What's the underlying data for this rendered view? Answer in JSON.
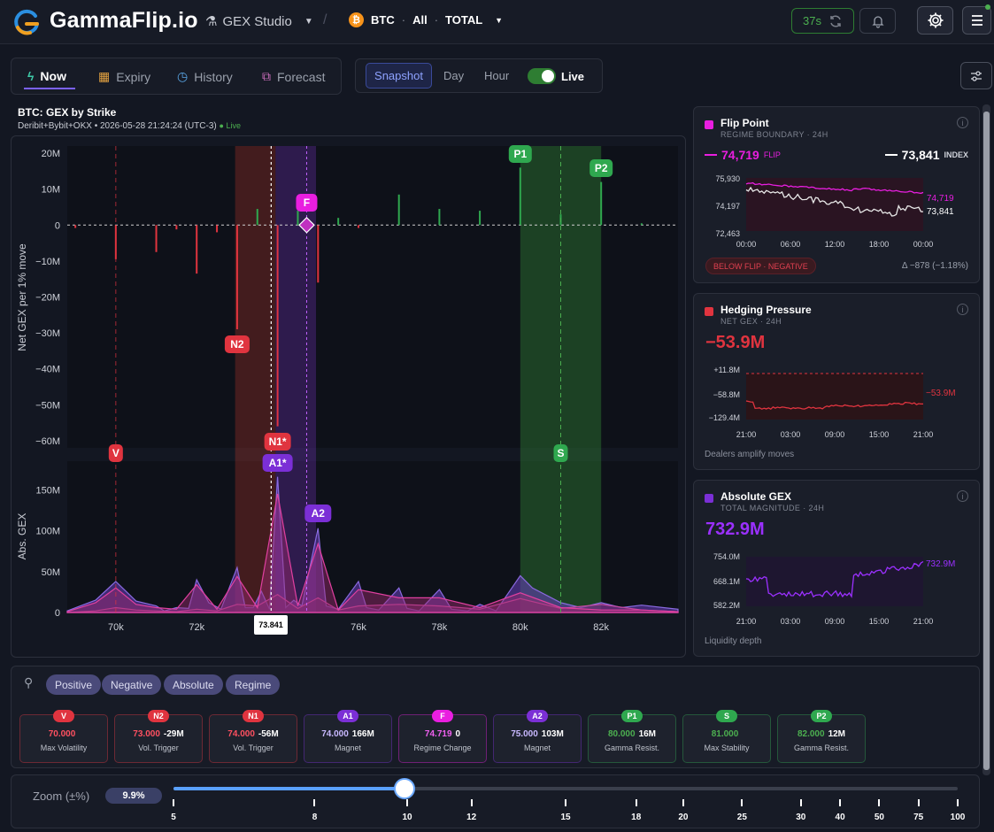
{
  "app": {
    "brand": "GammaFlip.io",
    "studio": "GEX Studio",
    "asset": "BTC",
    "scope": "All",
    "total": "TOTAL",
    "refresh": "37s"
  },
  "tabs": [
    {
      "label": "Now"
    },
    {
      "label": "Expiry"
    },
    {
      "label": "History"
    },
    {
      "label": "Forecast"
    }
  ],
  "modes": {
    "snapshot": "Snapshot",
    "day": "Day",
    "hour": "Hour",
    "live": "Live"
  },
  "chart": {
    "title": "BTC: GEX by Strike",
    "subtitle": "Deribit+Bybit+OKX • 2026-05-28 21:24:24 (UTC-3)",
    "live": "● Live",
    "price_tag": "73.841"
  },
  "chart_data": {
    "type": "bar",
    "x_unit": "strike",
    "xlim": [
      68800,
      83900
    ],
    "x_ticks": [
      "70k",
      "72k",
      "74k",
      "76k",
      "78k",
      "80k",
      "82k"
    ],
    "top": {
      "ylabel": "Net GEX per 1% move",
      "ylim": [
        -62,
        22
      ],
      "y_ticks": [
        "20M",
        "10M",
        "0",
        "−10M",
        "−20M",
        "−30M",
        "−40M",
        "−50M",
        "−60M"
      ],
      "bars": [
        {
          "x": 69000,
          "v": -0.8
        },
        {
          "x": 70000,
          "v": -9.5
        },
        {
          "x": 71000,
          "v": -7.5
        },
        {
          "x": 71500,
          "v": -1.2
        },
        {
          "x": 72000,
          "v": -13.5
        },
        {
          "x": 72500,
          "v": -2
        },
        {
          "x": 73000,
          "v": -29
        },
        {
          "x": 73500,
          "v": 4.5
        },
        {
          "x": 74000,
          "v": -56
        },
        {
          "x": 74500,
          "v": 4
        },
        {
          "x": 75000,
          "v": -16
        },
        {
          "x": 75500,
          "v": 2
        },
        {
          "x": 76000,
          "v": -0.8
        },
        {
          "x": 77000,
          "v": 8.5
        },
        {
          "x": 78000,
          "v": 4.5
        },
        {
          "x": 79000,
          "v": 4
        },
        {
          "x": 80000,
          "v": 16
        },
        {
          "x": 81000,
          "v": 3
        },
        {
          "x": 82000,
          "v": 12
        },
        {
          "x": 83000,
          "v": 0.5
        }
      ]
    },
    "bottom": {
      "ylabel": "Abs. GEX",
      "ylim": [
        0,
        185
      ],
      "y_ticks": [
        "150M",
        "100M",
        "50M",
        "0"
      ],
      "series": [
        {
          "name": "Absolute",
          "points": [
            [
              68800,
              2
            ],
            [
              69500,
              15
            ],
            [
              70000,
              38
            ],
            [
              70500,
              14
            ],
            [
              71000,
              8
            ],
            [
              71200,
              2
            ],
            [
              71500,
              6
            ],
            [
              71800,
              5
            ],
            [
              72000,
              40
            ],
            [
              72300,
              12
            ],
            [
              72600,
              4
            ],
            [
              73000,
              55
            ],
            [
              73200,
              6
            ],
            [
              73400,
              6
            ],
            [
              73600,
              26
            ],
            [
              73800,
              4
            ],
            [
              74000,
              166
            ],
            [
              74200,
              6
            ],
            [
              74400,
              15
            ],
            [
              74600,
              8
            ],
            [
              75000,
              103
            ],
            [
              75200,
              8
            ],
            [
              75500,
              4
            ],
            [
              76000,
              38
            ],
            [
              76200,
              6
            ],
            [
              76500,
              3
            ],
            [
              77000,
              30
            ],
            [
              77200,
              5
            ],
            [
              77500,
              2
            ],
            [
              78000,
              28
            ],
            [
              78300,
              4
            ],
            [
              78700,
              2
            ],
            [
              79000,
              10
            ],
            [
              79400,
              2
            ],
            [
              80000,
              45
            ],
            [
              80300,
              30
            ],
            [
              81000,
              12
            ],
            [
              81500,
              6
            ],
            [
              82000,
              12
            ],
            [
              82500,
              6
            ],
            [
              83000,
              9
            ],
            [
              83900,
              4
            ]
          ]
        },
        {
          "name": "Positive",
          "points": [
            [
              68800,
              0
            ],
            [
              69500,
              2
            ],
            [
              70000,
              6
            ],
            [
              70500,
              3
            ],
            [
              71000,
              2
            ],
            [
              71500,
              1
            ],
            [
              72000,
              4
            ],
            [
              72500,
              2
            ],
            [
              73000,
              10
            ],
            [
              73500,
              8
            ],
            [
              74000,
              22
            ],
            [
              74500,
              5
            ],
            [
              75000,
              18
            ],
            [
              75500,
              3
            ],
            [
              76000,
              8
            ],
            [
              77000,
              10
            ],
            [
              78000,
              8
            ],
            [
              79000,
              4
            ],
            [
              80000,
              17
            ],
            [
              81000,
              5
            ],
            [
              82000,
              10
            ],
            [
              83000,
              3
            ],
            [
              83900,
              1
            ]
          ]
        },
        {
          "name": "Negative",
          "points": [
            [
              68800,
              1
            ],
            [
              69500,
              12
            ],
            [
              70000,
              30
            ],
            [
              70500,
              10
            ],
            [
              71000,
              6
            ],
            [
              71500,
              4
            ],
            [
              72000,
              34
            ],
            [
              72500,
              4
            ],
            [
              73000,
              44
            ],
            [
              73500,
              6
            ],
            [
              74000,
              145
            ],
            [
              74500,
              8
            ],
            [
              75000,
              84
            ],
            [
              75500,
              3
            ],
            [
              76000,
              28
            ],
            [
              77000,
              18
            ],
            [
              78000,
              18
            ],
            [
              79000,
              6
            ],
            [
              80000,
              24
            ],
            [
              81000,
              6
            ],
            [
              82000,
              3
            ],
            [
              83000,
              3
            ],
            [
              83900,
              1
            ]
          ]
        }
      ]
    },
    "spot": 73841,
    "flip": 74719
  },
  "markers_top": [
    {
      "label": "P1"
    },
    {
      "label": "P2"
    },
    {
      "label": "F"
    },
    {
      "label": "N2"
    },
    {
      "label": "N1*"
    }
  ],
  "markers_bottom": [
    {
      "label": "V"
    },
    {
      "label": "S"
    },
    {
      "label": "A1*"
    },
    {
      "label": "A2"
    }
  ],
  "flip_panel": {
    "name": "Flip Point",
    "sub": "REGIME BOUNDARY · 24H",
    "flip_val": "74,719",
    "flip_lbl": "FLIP",
    "index_val": "73,841",
    "index_lbl": "INDEX",
    "y_ticks": [
      "75,930",
      "74,197",
      "72,463"
    ],
    "x_ticks": [
      "00:00",
      "06:00",
      "12:00",
      "18:00",
      "00:00"
    ],
    "end_flip": "74,719",
    "end_index": "73,841",
    "badge": "BELOW FLIP · NEGATIVE",
    "delta": "Δ −878 (−1.18%)"
  },
  "hedge_panel": {
    "name": "Hedging Pressure",
    "sub": "NET GEX · 24H",
    "value": "−53.9M",
    "y_ticks": [
      "+11.8M",
      "−58.8M",
      "−129.4M"
    ],
    "x_ticks": [
      "21:00",
      "03:00",
      "09:00",
      "15:00",
      "21:00"
    ],
    "end": "−53.9M",
    "foot": "Dealers amplify moves"
  },
  "abs_panel": {
    "name": "Absolute GEX",
    "sub": "TOTAL MAGNITUDE · 24H",
    "value": "732.9M",
    "y_ticks": [
      "754.0M",
      "668.1M",
      "582.2M"
    ],
    "x_ticks": [
      "21:00",
      "03:00",
      "09:00",
      "15:00",
      "21:00"
    ],
    "end": "732.9M",
    "foot": "Liquidity depth"
  },
  "filters": [
    {
      "label": "Positive"
    },
    {
      "label": "Negative"
    },
    {
      "label": "Absolute"
    },
    {
      "label": "Regime"
    }
  ],
  "levels": [
    {
      "badge": "V",
      "strike": "70.000",
      "val": "",
      "desc": "Max Volatility",
      "color": "#e0343f"
    },
    {
      "badge": "N2",
      "strike": "73.000",
      "val": "-29M",
      "desc": "Vol. Trigger",
      "color": "#e0343f"
    },
    {
      "badge": "N1",
      "strike": "74.000",
      "val": "-56M",
      "desc": "Vol. Trigger",
      "color": "#e0343f"
    },
    {
      "badge": "A1",
      "strike": "74.000",
      "val": "166M",
      "desc": "Magnet",
      "color": "#7b2fd6"
    },
    {
      "badge": "F",
      "strike": "74.719",
      "val": "0",
      "desc": "Regime Change",
      "color": "#e91ee0"
    },
    {
      "badge": "A2",
      "strike": "75.000",
      "val": "103M",
      "desc": "Magnet",
      "color": "#7b2fd6"
    },
    {
      "badge": "P1",
      "strike": "80.000",
      "val": "16M",
      "desc": "Gamma Resist.",
      "color": "#2fa84f"
    },
    {
      "badge": "S",
      "strike": "81.000",
      "val": "",
      "desc": "Max Stability",
      "color": "#2fa84f"
    },
    {
      "badge": "P2",
      "strike": "82.000",
      "val": "12M",
      "desc": "Gamma Resist.",
      "color": "#2fa84f"
    }
  ],
  "zoom": {
    "label": "Zoom (±%)",
    "value": "9.9%",
    "fraction": 0.295,
    "ticks": [
      "5",
      "8",
      "10",
      "12",
      "15",
      "18",
      "20",
      "25",
      "30",
      "40",
      "50",
      "75",
      "100"
    ]
  }
}
